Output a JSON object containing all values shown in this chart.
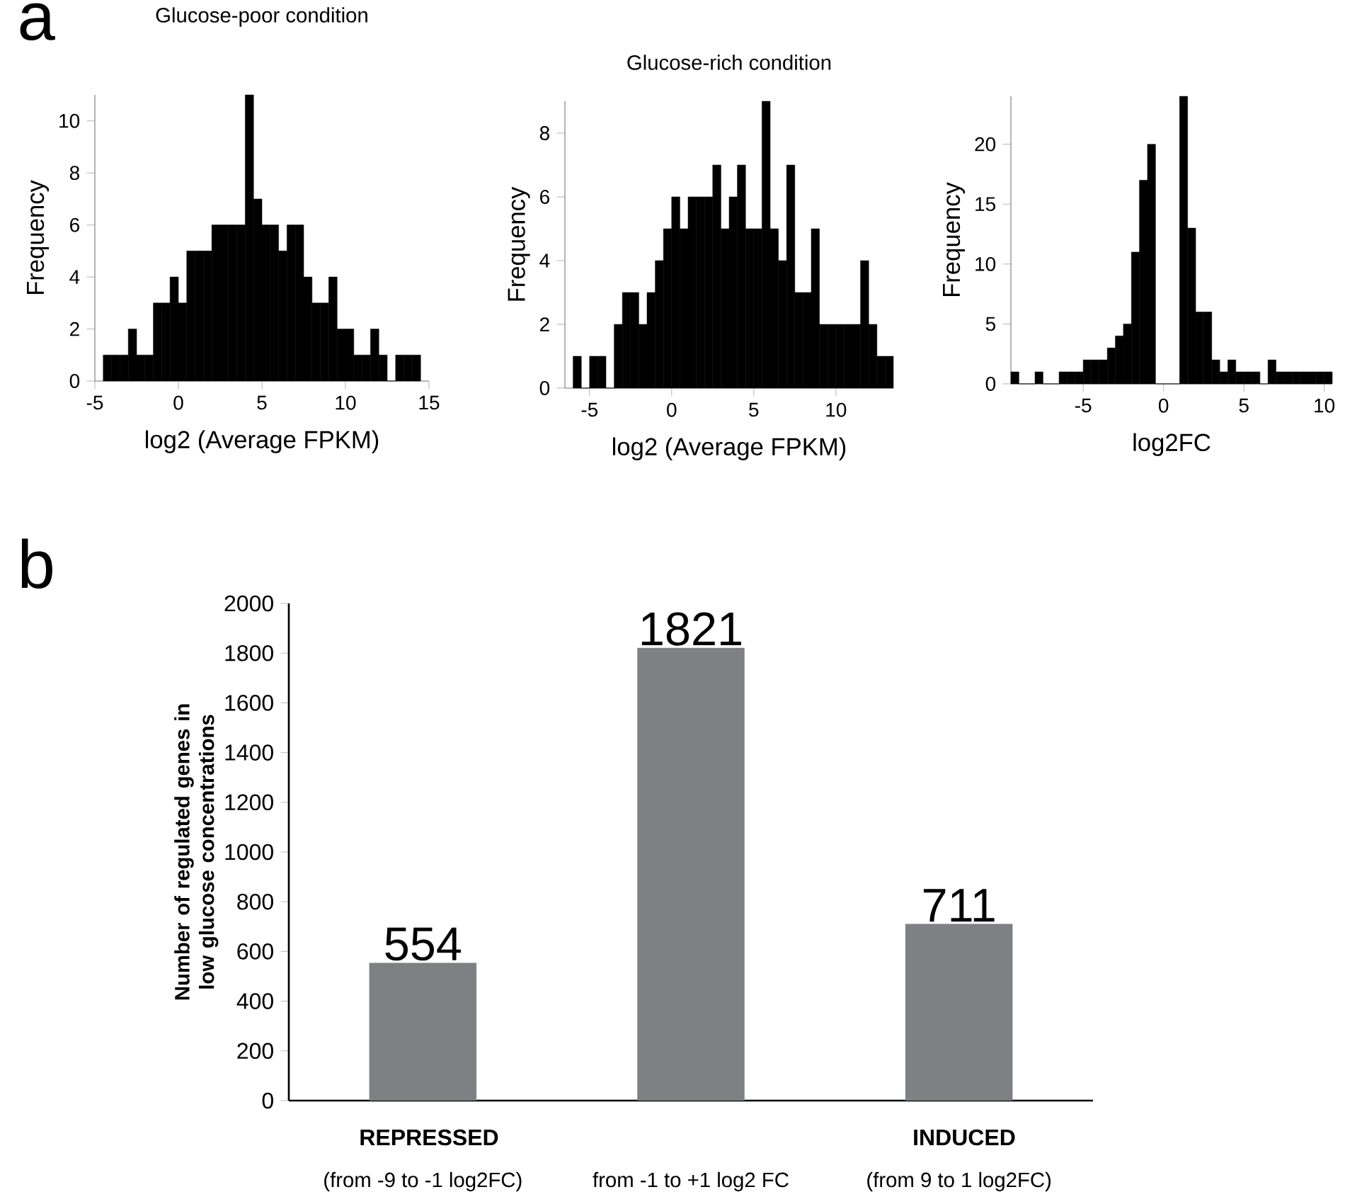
{
  "chart_data": [
    {
      "type": "histogram",
      "title": "Glucose-poor condition",
      "xlabel": "log2 (Average FPKM)",
      "ylabel": "Frequency",
      "color": "#000000",
      "annotations": [
        "a"
      ],
      "bins": [
        -4.5,
        -4,
        -3.5,
        -3,
        -2.5,
        -2,
        -1.5,
        -1,
        -0.5,
        0,
        0.5,
        1,
        1.5,
        2,
        2.5,
        3,
        3.5,
        4,
        4.5,
        5,
        5.5,
        6,
        6.5,
        7,
        7.5,
        8,
        8.5,
        9,
        9.5,
        10,
        10.5,
        11,
        11.5,
        12,
        12.5,
        13,
        13.5,
        14,
        14.5
      ],
      "values": [
        1,
        1,
        1,
        2,
        1,
        1,
        3,
        3,
        4,
        3,
        5,
        5,
        5,
        6,
        6,
        6,
        6,
        11,
        7,
        6,
        6,
        5,
        6,
        6,
        4,
        3,
        3,
        4,
        2,
        2,
        1,
        1,
        2,
        1,
        0,
        1,
        1,
        1
      ],
      "xlim": [
        -5,
        15
      ],
      "xticks": [
        -5,
        0,
        5,
        10,
        15
      ],
      "ylim": [
        0,
        11
      ],
      "yticks": [
        0,
        2,
        4,
        6,
        8,
        10
      ]
    },
    {
      "type": "histogram",
      "title": "Glucose-rich condition",
      "xlabel": "log2 (Average FPKM)",
      "ylabel": "Frequency",
      "color": "#000000",
      "bins": [
        -6,
        -5.5,
        -5,
        -4.5,
        -4,
        -3.5,
        -3,
        -2.5,
        -2,
        -1.5,
        -1,
        -0.5,
        0,
        0.5,
        1,
        1.5,
        2,
        2.5,
        3,
        3.5,
        4,
        4.5,
        5,
        5.5,
        6,
        6.5,
        7,
        7.5,
        8,
        8.5,
        9,
        9.5,
        10,
        10.5,
        11,
        11.5,
        12,
        12.5,
        13,
        13.5
      ],
      "values": [
        1,
        0,
        1,
        1,
        0,
        2,
        3,
        3,
        2,
        3,
        4,
        5,
        6,
        5,
        6,
        6,
        6,
        7,
        5,
        6,
        7,
        5,
        5,
        9,
        5,
        4,
        7,
        3,
        3,
        5,
        2,
        2,
        2,
        2,
        2,
        4,
        2,
        1,
        1
      ],
      "xlim": [
        -6.5,
        13.5
      ],
      "xticks": [
        -5,
        0,
        5,
        10
      ],
      "ylim": [
        0,
        9
      ],
      "yticks": [
        0,
        2,
        4,
        6,
        8
      ]
    },
    {
      "type": "histogram",
      "xlabel": "log2FC",
      "ylabel": "Frequency",
      "color": "#000000",
      "bins": [
        -9.5,
        -9,
        -8.5,
        -8,
        -7.5,
        -7,
        -6.5,
        -6,
        -5.5,
        -5,
        -4.5,
        -4,
        -3.5,
        -3,
        -2.5,
        -2,
        -1.5,
        -1,
        -0.5,
        0,
        0.5,
        1,
        1.5,
        2,
        2.5,
        3,
        3.5,
        4,
        4.5,
        5,
        5.5,
        6,
        6.5,
        7,
        7.5,
        8,
        8.5,
        9,
        9.5,
        10,
        10.5
      ],
      "values": [
        1,
        0,
        0,
        1,
        0,
        0,
        1,
        1,
        1,
        2,
        2,
        2,
        3,
        4,
        5,
        11,
        17,
        20,
        0,
        0,
        0,
        24,
        13,
        6,
        6,
        2,
        1,
        2,
        1,
        1,
        1,
        0,
        2,
        1,
        1,
        1,
        1,
        1,
        1,
        1
      ],
      "xlim": [
        -9.5,
        10.5
      ],
      "xticks": [
        -5,
        0,
        5,
        10
      ],
      "ylim": [
        0,
        24
      ],
      "yticks": [
        0,
        5,
        10,
        15,
        20
      ]
    },
    {
      "type": "bar",
      "ylabel": "Number of regulated genes in low glucose concentrations",
      "color": "#7f8084",
      "data_labels": true,
      "categories": [
        "(from -9 to -1 log2FC)",
        "from -1 to +1 log2 FC",
        "(from 9 to 1 log2FC)"
      ],
      "values": [
        554,
        1821,
        711
      ],
      "ylim": [
        0,
        2000
      ],
      "yticks": [
        0,
        200,
        400,
        600,
        800,
        1000,
        1200,
        1400,
        1600,
        1800,
        2000
      ],
      "annotations": [
        "b",
        "REPRESSED",
        "INDUCED"
      ]
    }
  ]
}
